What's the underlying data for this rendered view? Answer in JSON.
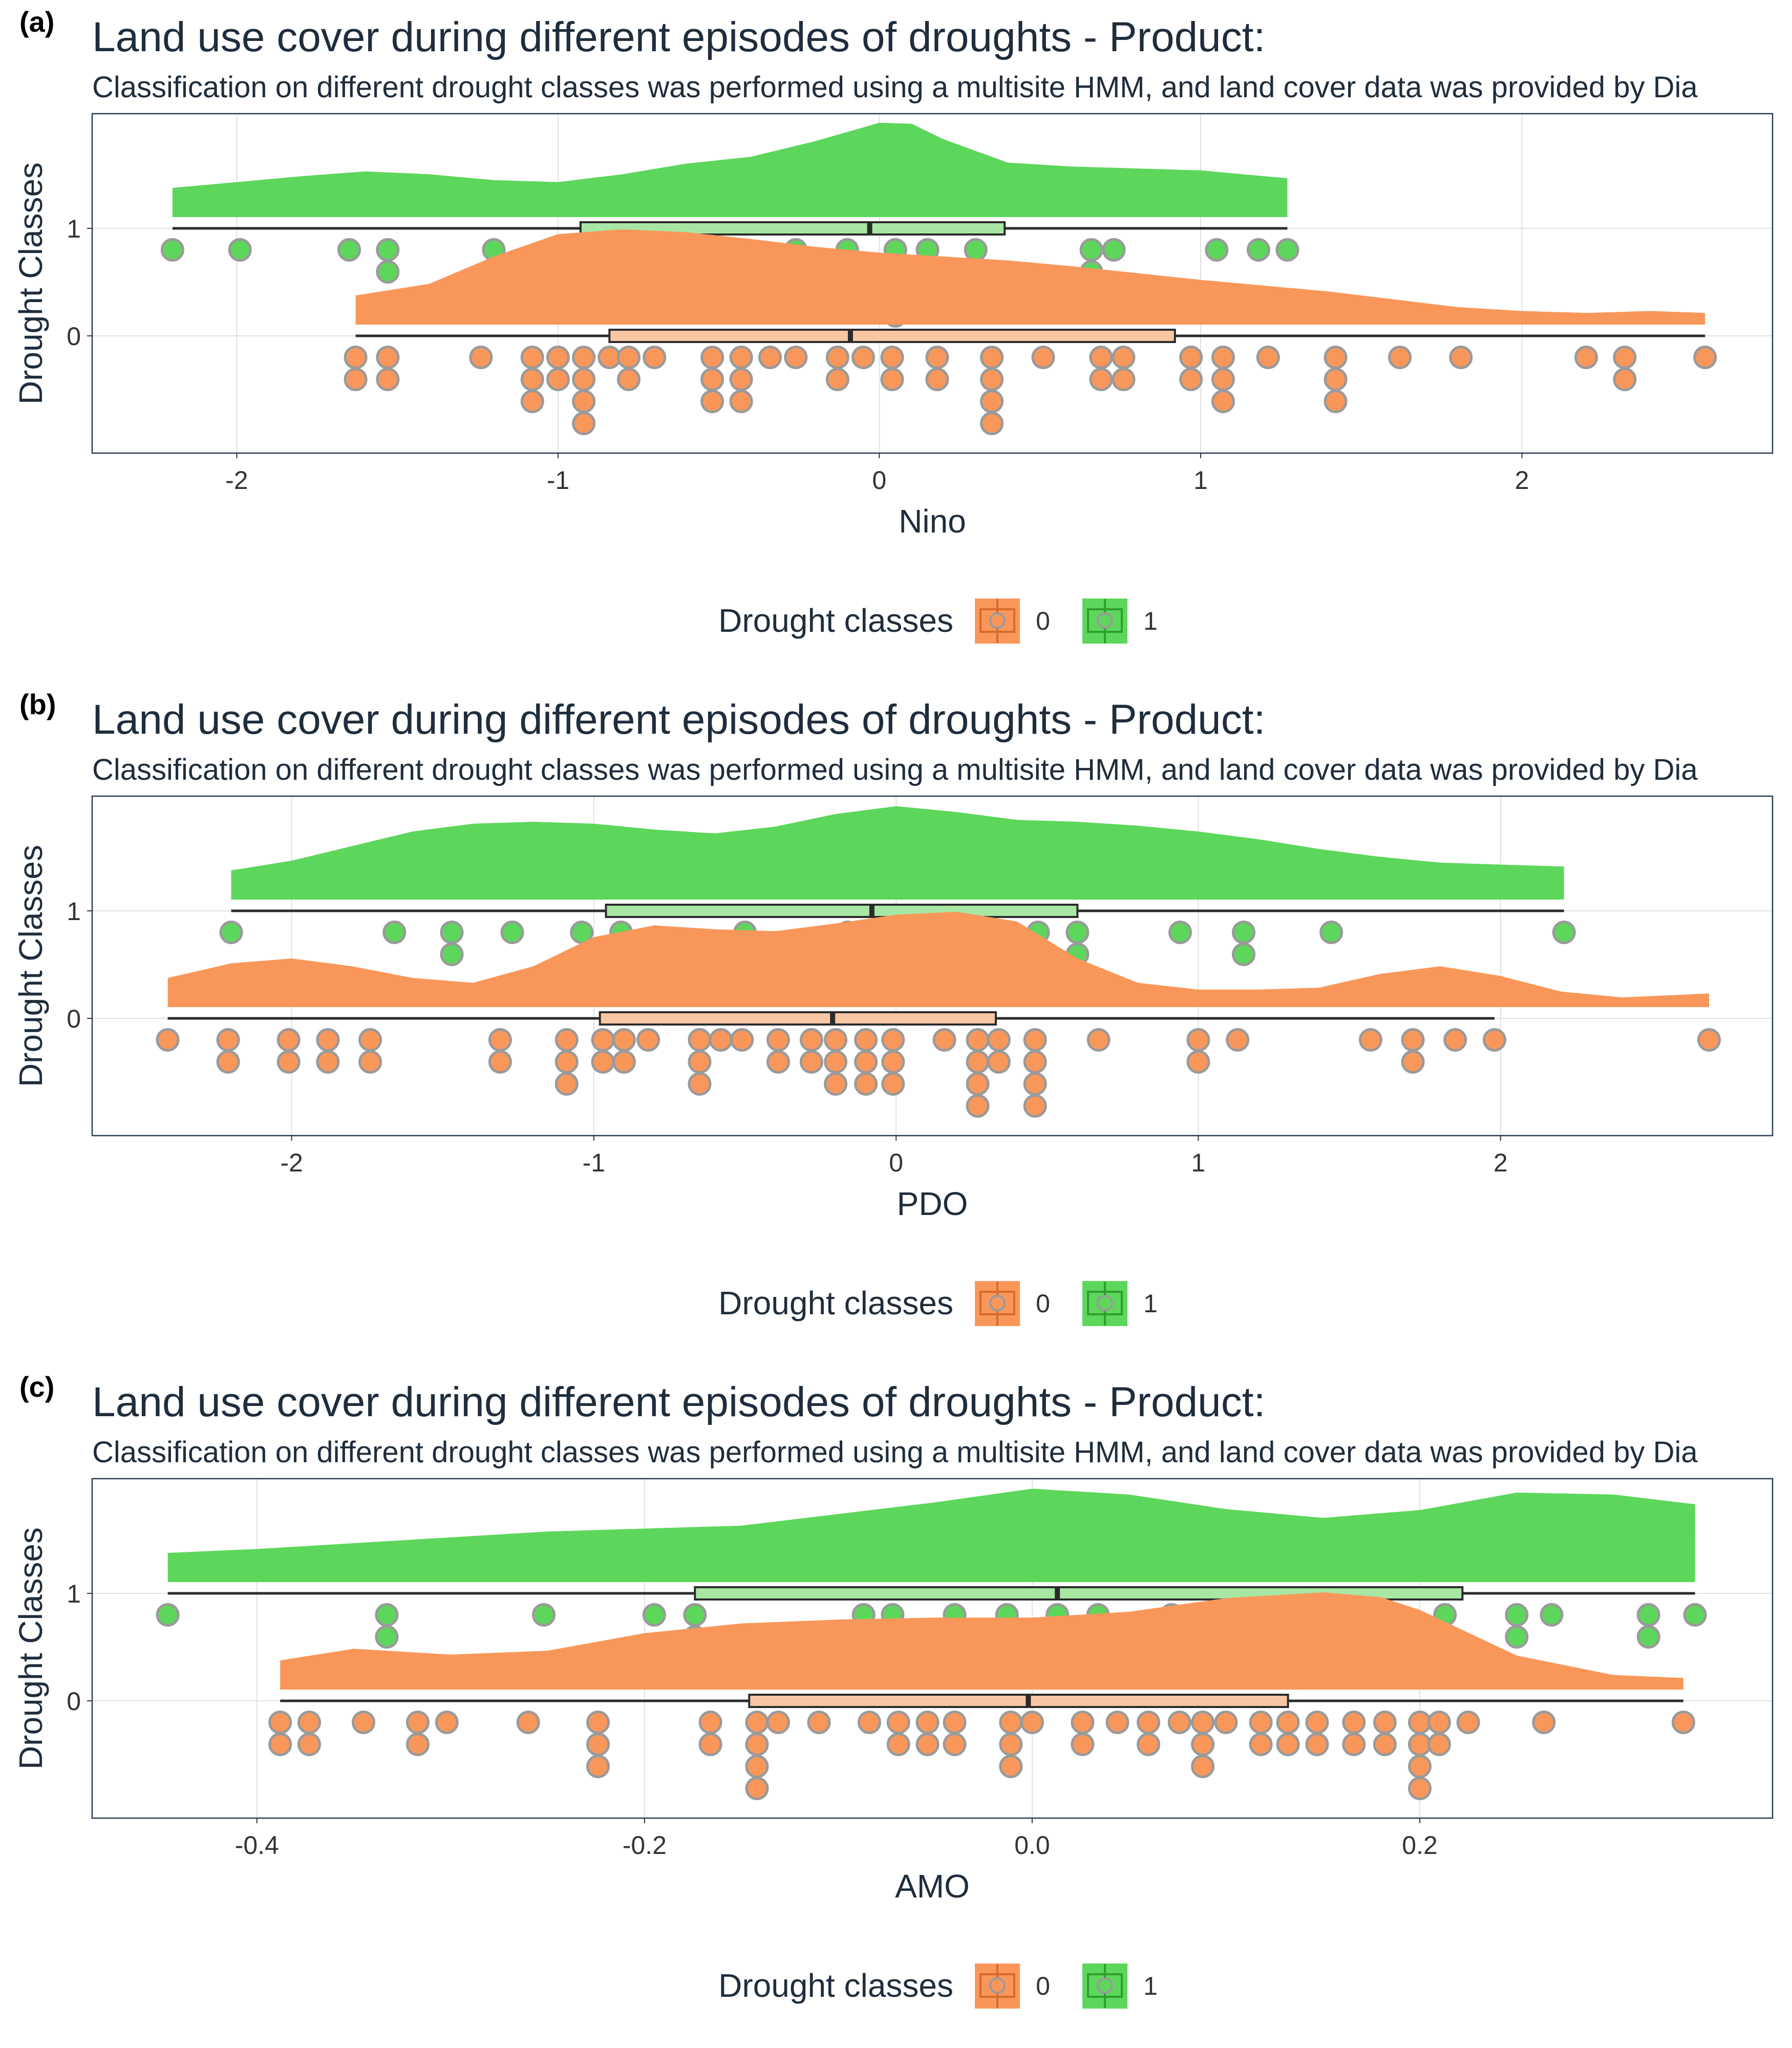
{
  "colors": {
    "class_0": "#f9975a",
    "class_1": "#5dd65c",
    "box_0": "#f9c6a4",
    "box_1": "#a7e7a3",
    "point_stroke": "#9a9a9a",
    "axis_text": "#333333",
    "title_text": "#1f2d3d",
    "grid": "#e1e1e1",
    "panel_border": "#2b3a55"
  },
  "legend": {
    "title": "Drought classes",
    "labels": [
      "0",
      "1"
    ],
    "key_icon": "boxplot-point-key-icon"
  },
  "chart_data": [
    {
      "panel_label": "(a)",
      "type": "raincloud",
      "title": "Land use cover during different episodes of droughts - Product:",
      "subtitle": "Classification on different drought classes was performed using a multisite HMM, and land cover data was provided by Dia",
      "xlabel": "Nino",
      "ylabel": "Drought Classes",
      "xlim": [
        -2.45,
        2.78
      ],
      "x_ticks": [
        -2,
        -1,
        0,
        1,
        2
      ],
      "x_tick_labels": [
        "-2",
        "-1",
        "0",
        "1",
        "2"
      ],
      "y_ticks": [
        0,
        1
      ],
      "y_tick_labels": [
        "0",
        "1"
      ],
      "grid": true,
      "legend_position": "bottom",
      "dot_binwidth": 0.085,
      "series": [
        {
          "name": "0",
          "box": {
            "min": -1.63,
            "q1": -0.84,
            "median": -0.09,
            "q3": 0.92,
            "max": 2.57
          },
          "density": {
            "x": [
              -1.63,
              -1.4,
              -1.2,
              -1.0,
              -0.8,
              -0.6,
              -0.4,
              -0.2,
              0.0,
              0.2,
              0.4,
              0.6,
              0.8,
              1.0,
              1.2,
              1.4,
              1.6,
              1.8,
              2.0,
              2.2,
              2.4,
              2.57
            ],
            "y": [
              0.3,
              0.42,
              0.7,
              0.93,
              0.98,
              0.95,
              0.88,
              0.8,
              0.74,
              0.7,
              0.66,
              0.6,
              0.53,
              0.46,
              0.4,
              0.34,
              0.26,
              0.18,
              0.14,
              0.12,
              0.14,
              0.12
            ]
          },
          "points": [
            -1.63,
            -1.63,
            -1.53,
            -1.53,
            -1.24,
            -1.08,
            -1.08,
            -1.08,
            -1.0,
            -1.0,
            -0.92,
            -0.92,
            -0.92,
            -0.92,
            -0.84,
            -0.78,
            -0.78,
            -0.7,
            -0.52,
            -0.52,
            -0.52,
            -0.43,
            -0.43,
            -0.43,
            -0.34,
            -0.26,
            -0.13,
            -0.13,
            -0.05,
            0.04,
            0.04,
            0.18,
            0.18,
            0.35,
            0.35,
            0.35,
            0.35,
            0.51,
            0.69,
            0.69,
            0.76,
            0.76,
            0.97,
            0.97,
            1.07,
            1.07,
            1.07,
            1.21,
            1.42,
            1.42,
            1.42,
            1.62,
            1.81,
            2.2,
            2.32,
            2.32,
            2.57
          ]
        },
        {
          "name": "1",
          "box": {
            "min": -2.2,
            "q1": -0.93,
            "median": -0.03,
            "q3": 0.39,
            "max": 1.27
          },
          "density": {
            "x": [
              -2.2,
              -2.0,
              -1.8,
              -1.6,
              -1.4,
              -1.2,
              -1.0,
              -0.8,
              -0.6,
              -0.4,
              -0.2,
              0.0,
              0.1,
              0.2,
              0.4,
              0.6,
              0.8,
              1.0,
              1.2,
              1.27
            ],
            "y": [
              0.3,
              0.36,
              0.42,
              0.47,
              0.44,
              0.38,
              0.36,
              0.44,
              0.55,
              0.62,
              0.78,
              0.97,
              0.96,
              0.8,
              0.56,
              0.52,
              0.5,
              0.48,
              0.42,
              0.4
            ]
          },
          "points": [
            -2.2,
            -1.99,
            -1.65,
            -1.53,
            -1.53,
            -1.2,
            -0.85,
            -0.58,
            -0.51,
            -0.43,
            -0.26,
            -0.1,
            0.05,
            0.05,
            0.05,
            0.05,
            0.15,
            0.3,
            0.66,
            0.66,
            0.73,
            1.05,
            1.18,
            1.27
          ]
        }
      ]
    },
    {
      "panel_label": "(b)",
      "type": "raincloud",
      "title": "Land use cover during different episodes of droughts - Product:",
      "subtitle": "Classification on different drought classes was performed using a multisite HMM, and land cover data was provided by Dia",
      "xlabel": "PDO",
      "ylabel": "Drought Classes",
      "xlim": [
        -2.66,
        2.9
      ],
      "x_ticks": [
        -2,
        -1,
        0,
        1,
        2
      ],
      "x_tick_labels": [
        "-2",
        "-1",
        "0",
        "1",
        "2"
      ],
      "y_ticks": [
        0,
        1
      ],
      "y_tick_labels": [
        "0",
        "1"
      ],
      "grid": true,
      "legend_position": "bottom",
      "dot_binwidth": 0.09,
      "series": [
        {
          "name": "0",
          "box": {
            "min": -2.41,
            "q1": -0.98,
            "median": -0.21,
            "q3": 0.33,
            "max": 1.98
          },
          "density": {
            "x": [
              -2.41,
              -2.2,
              -2.0,
              -1.8,
              -1.6,
              -1.4,
              -1.2,
              -1.0,
              -0.8,
              -0.6,
              -0.4,
              -0.2,
              0.0,
              0.2,
              0.4,
              0.6,
              0.8,
              1.0,
              1.2,
              1.4,
              1.6,
              1.8,
              2.0,
              2.2,
              2.4,
              2.69
            ],
            "y": [
              0.3,
              0.45,
              0.5,
              0.42,
              0.3,
              0.25,
              0.42,
              0.72,
              0.84,
              0.8,
              0.78,
              0.86,
              0.95,
              0.98,
              0.88,
              0.5,
              0.25,
              0.18,
              0.18,
              0.2,
              0.34,
              0.42,
              0.32,
              0.16,
              0.1,
              0.14
            ]
          },
          "points": [
            -2.41,
            -2.21,
            -2.21,
            -2.01,
            -2.01,
            -1.88,
            -1.88,
            -1.74,
            -1.74,
            -1.31,
            -1.31,
            -1.09,
            -1.09,
            -1.09,
            -0.97,
            -0.97,
            -0.9,
            -0.9,
            -0.82,
            -0.65,
            -0.65,
            -0.65,
            -0.58,
            -0.51,
            -0.39,
            -0.39,
            -0.28,
            -0.28,
            -0.2,
            -0.2,
            -0.2,
            -0.1,
            -0.1,
            -0.1,
            -0.01,
            -0.01,
            -0.01,
            0.16,
            0.27,
            0.27,
            0.27,
            0.27,
            0.34,
            0.34,
            0.46,
            0.46,
            0.46,
            0.46,
            0.67,
            1.0,
            1.0,
            1.13,
            1.57,
            1.71,
            1.71,
            1.85,
            1.98,
            2.69
          ]
        },
        {
          "name": "1",
          "box": {
            "min": -2.2,
            "q1": -0.96,
            "median": -0.08,
            "q3": 0.6,
            "max": 2.21
          },
          "density": {
            "x": [
              -2.2,
              -2.0,
              -1.8,
              -1.6,
              -1.4,
              -1.2,
              -1.0,
              -0.8,
              -0.6,
              -0.4,
              -0.2,
              0.0,
              0.2,
              0.4,
              0.6,
              0.8,
              1.0,
              1.2,
              1.4,
              1.6,
              1.8,
              2.0,
              2.21
            ],
            "y": [
              0.3,
              0.4,
              0.55,
              0.7,
              0.78,
              0.8,
              0.78,
              0.72,
              0.68,
              0.75,
              0.88,
              0.96,
              0.9,
              0.82,
              0.8,
              0.76,
              0.7,
              0.62,
              0.52,
              0.44,
              0.38,
              0.36,
              0.34
            ]
          },
          "points": [
            -2.2,
            -1.66,
            -1.47,
            -1.47,
            -1.27,
            -1.04,
            -0.91,
            -0.91,
            -0.5,
            -0.5,
            -0.16,
            -0.16,
            -0.03,
            -0.03,
            0.06,
            0.47,
            0.47,
            0.6,
            0.6,
            0.94,
            1.15,
            1.15,
            1.44,
            2.21
          ]
        }
      ]
    },
    {
      "panel_label": "(c)",
      "type": "raincloud",
      "title": "Land use cover during different episodes of droughts - Product:",
      "subtitle": "Classification on different drought classes was performed using a multisite HMM, and land cover data was provided by Dia",
      "xlabel": "AMO",
      "ylabel": "Drought Classes",
      "xlim": [
        -0.485,
        0.382
      ],
      "x_ticks": [
        -0.4,
        -0.2,
        0.0,
        0.2
      ],
      "x_tick_labels": [
        "-0.4",
        "-0.2",
        "0.0",
        "0.2"
      ],
      "y_ticks": [
        0,
        1
      ],
      "y_tick_labels": [
        "0",
        "1"
      ],
      "grid": true,
      "legend_position": "bottom",
      "dot_binwidth": 0.014,
      "series": [
        {
          "name": "0",
          "box": {
            "min": -0.388,
            "q1": -0.146,
            "median": -0.002,
            "q3": 0.132,
            "max": 0.336
          },
          "density": {
            "x": [
              -0.388,
              -0.35,
              -0.3,
              -0.25,
              -0.2,
              -0.15,
              -0.1,
              -0.05,
              0.0,
              0.05,
              0.1,
              0.15,
              0.18,
              0.2,
              0.25,
              0.3,
              0.336
            ],
            "y": [
              0.3,
              0.42,
              0.36,
              0.4,
              0.58,
              0.68,
              0.72,
              0.74,
              0.74,
              0.8,
              0.94,
              1.0,
              0.95,
              0.82,
              0.35,
              0.15,
              0.12
            ]
          },
          "points": [
            -0.388,
            -0.388,
            -0.373,
            -0.373,
            -0.345,
            -0.317,
            -0.317,
            -0.302,
            -0.26,
            -0.224,
            -0.224,
            -0.224,
            -0.166,
            -0.166,
            -0.142,
            -0.142,
            -0.142,
            -0.142,
            -0.131,
            -0.11,
            -0.084,
            -0.069,
            -0.069,
            -0.054,
            -0.054,
            -0.04,
            -0.04,
            -0.011,
            -0.011,
            -0.011,
            0.0,
            0.026,
            0.026,
            0.044,
            0.06,
            0.06,
            0.076,
            0.088,
            0.088,
            0.088,
            0.1,
            0.118,
            0.118,
            0.132,
            0.132,
            0.147,
            0.147,
            0.166,
            0.166,
            0.182,
            0.182,
            0.2,
            0.2,
            0.2,
            0.2,
            0.21,
            0.21,
            0.225,
            0.264,
            0.336
          ]
        },
        {
          "name": "1",
          "box": {
            "min": -0.446,
            "q1": -0.174,
            "median": 0.013,
            "q3": 0.222,
            "max": 0.342
          },
          "density": {
            "x": [
              -0.446,
              -0.4,
              -0.35,
              -0.3,
              -0.25,
              -0.2,
              -0.15,
              -0.1,
              -0.05,
              0.0,
              0.05,
              0.1,
              0.15,
              0.2,
              0.25,
              0.3,
              0.342
            ],
            "y": [
              0.3,
              0.34,
              0.4,
              0.46,
              0.52,
              0.55,
              0.58,
              0.7,
              0.82,
              0.96,
              0.9,
              0.75,
              0.66,
              0.74,
              0.92,
              0.9,
              0.8
            ]
          },
          "points": [
            -0.446,
            -0.333,
            -0.333,
            -0.252,
            -0.195,
            -0.174,
            -0.174,
            -0.087,
            -0.072,
            -0.04,
            -0.013,
            0.013,
            0.013,
            0.034,
            0.072,
            0.113,
            0.169,
            0.213,
            0.25,
            0.25,
            0.268,
            0.318,
            0.318,
            0.342
          ]
        }
      ]
    }
  ]
}
